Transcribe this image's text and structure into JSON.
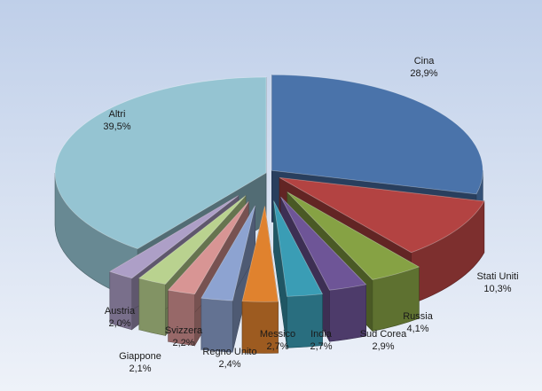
{
  "chart_data": {
    "type": "pie",
    "style": "3d-exploded",
    "title": "",
    "slices": [
      {
        "label": "Cina",
        "value": 28.9,
        "value_label": "28,9%",
        "color": "#4a73aa"
      },
      {
        "label": "Stati Uniti",
        "value": 10.3,
        "value_label": "10,3%",
        "color": "#b34342"
      },
      {
        "label": "Russia",
        "value": 4.1,
        "value_label": "4,1%",
        "color": "#86a244"
      },
      {
        "label": "Sud Corea",
        "value": 2.9,
        "value_label": "2,9%",
        "color": "#6e5597"
      },
      {
        "label": "India",
        "value": 2.7,
        "value_label": "2,7%",
        "color": "#3a9db5"
      },
      {
        "label": "Messico",
        "value": 2.7,
        "value_label": "2,7%",
        "color": "#e0822e"
      },
      {
        "label": "Regno Unito",
        "value": 2.4,
        "value_label": "2,4%",
        "color": "#8da3d1"
      },
      {
        "label": "Giappone",
        "value": 2.1,
        "value_label": "2,1%",
        "color": "#d89594"
      },
      {
        "label": "Svizzera",
        "value": 2.2,
        "value_label": "2,2%",
        "color": "#b9d28f"
      },
      {
        "label": "Austria",
        "value": 2.0,
        "value_label": "2,0%",
        "color": "#ad9fc7"
      },
      {
        "label": "Altri",
        "value": 39.5,
        "value_label": "39,5%",
        "color": "#95c4d2"
      }
    ]
  }
}
